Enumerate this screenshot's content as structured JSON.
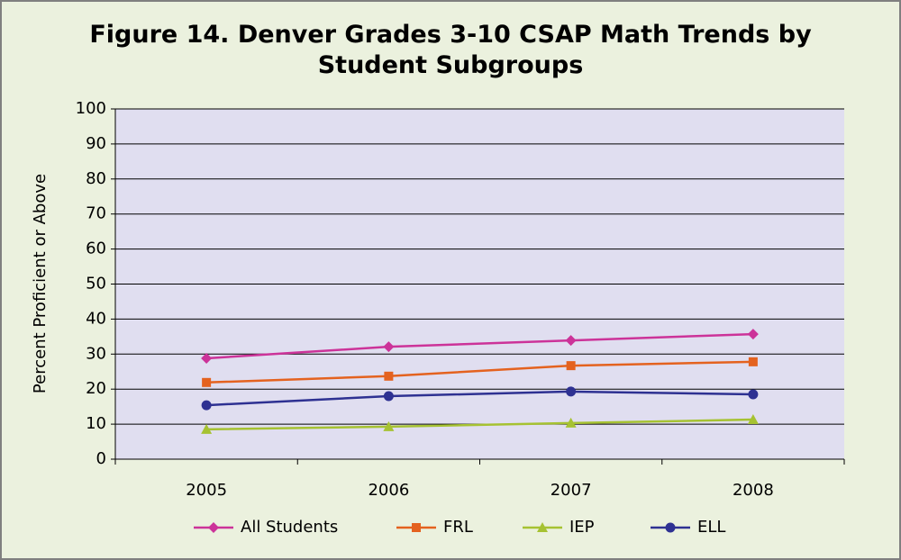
{
  "chart_data": {
    "type": "line",
    "title": "Figure 14. Denver Grades 3-10 CSAP Math Trends by Student Subgroups",
    "ylabel": "Percent Proficient or Above",
    "categories": [
      "2005",
      "2006",
      "2007",
      "2008"
    ],
    "series": [
      {
        "name": "All Students",
        "color": "#cc3399",
        "marker": "diamond",
        "values": [
          28.8,
          32.1,
          33.9,
          35.7
        ]
      },
      {
        "name": "FRL",
        "color": "#e4621f",
        "marker": "square",
        "values": [
          21.9,
          23.7,
          26.7,
          27.8
        ]
      },
      {
        "name": "IEP",
        "color": "#a6c232",
        "marker": "triangle",
        "values": [
          8.5,
          9.3,
          10.3,
          11.3
        ]
      },
      {
        "name": "ELL",
        "color": "#2e3192",
        "marker": "circle",
        "values": [
          15.4,
          18.0,
          19.3,
          18.5
        ]
      }
    ],
    "ylim": [
      0,
      100
    ],
    "yticks": [
      0,
      10,
      20,
      30,
      40,
      50,
      60,
      70,
      80,
      90,
      100
    ],
    "grid": true,
    "legend": "bottom"
  }
}
